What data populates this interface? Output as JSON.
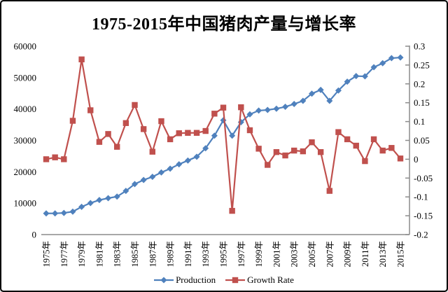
{
  "title": "1975-2015年中国猪肉产量与增长率",
  "chart_data": {
    "type": "line",
    "categories": [
      1975,
      1976,
      1977,
      1978,
      1979,
      1980,
      1981,
      1982,
      1983,
      1984,
      1985,
      1986,
      1987,
      1988,
      1989,
      1990,
      1991,
      1992,
      1993,
      1994,
      1995,
      1996,
      1997,
      1998,
      1999,
      2000,
      2001,
      2002,
      2003,
      2004,
      2005,
      2006,
      2007,
      2008,
      2009,
      2010,
      2011,
      2012,
      2013,
      2014,
      2015
    ],
    "x_tick_labels": [
      "1975年",
      "1977年",
      "1979年",
      "1981年",
      "1983年",
      "1985年",
      "1987年",
      "1989年",
      "1991年",
      "1993年",
      "1995年",
      "1997年",
      "1999年",
      "2001年",
      "2003年",
      "2005年",
      "2007年",
      "2009年",
      "2011年",
      "2013年",
      "2015年"
    ],
    "series": [
      {
        "name": "Production",
        "axis": "left",
        "color": "#4F81BD",
        "marker": "diamond",
        "values": [
          6750,
          6760,
          6900,
          7300,
          8850,
          10050,
          11000,
          11600,
          12100,
          13900,
          16100,
          17400,
          18400,
          19800,
          21000,
          22400,
          23600,
          24800,
          27500,
          31500,
          36400,
          31500,
          35800,
          38300,
          39500,
          39700,
          40100,
          40700,
          41600,
          42600,
          44900,
          46100,
          42600,
          45900,
          48700,
          50500,
          50400,
          53300,
          54600,
          56200,
          56400
        ]
      },
      {
        "name": "Growth Rate",
        "axis": "right",
        "color": "#C0504D",
        "marker": "square",
        "values": [
          0.0,
          0.005,
          0.0,
          0.102,
          0.265,
          0.13,
          0.046,
          0.067,
          0.033,
          0.096,
          0.144,
          0.08,
          0.02,
          0.101,
          0.053,
          0.069,
          0.07,
          0.07,
          0.075,
          0.121,
          0.137,
          -0.137,
          0.138,
          0.077,
          0.028,
          -0.015,
          0.019,
          0.01,
          0.023,
          0.021,
          0.045,
          0.019,
          -0.084,
          0.072,
          0.053,
          0.036,
          -0.005,
          0.053,
          0.023,
          0.03,
          0.002
        ]
      }
    ],
    "left_axis": {
      "min": 0,
      "max": 60000,
      "step": 10000,
      "tick_labels": [
        "0",
        "10000",
        "20000",
        "30000",
        "40000",
        "50000",
        "60000"
      ]
    },
    "right_axis": {
      "min": -0.2,
      "max": 0.3,
      "step": 0.05,
      "tick_labels": [
        "-0.2",
        "-0.15",
        "-0.1",
        "-0.05",
        "0",
        "0.05",
        "0.1",
        "0.15",
        "0.2",
        "0.25",
        "0.3"
      ]
    },
    "legend_position": "bottom",
    "grid": false
  },
  "colors": {
    "production": "#4F81BD",
    "growth_rate": "#C0504D",
    "axis_line": "#8C8C8C",
    "text": "#000000",
    "background": "#FFFFFF"
  }
}
